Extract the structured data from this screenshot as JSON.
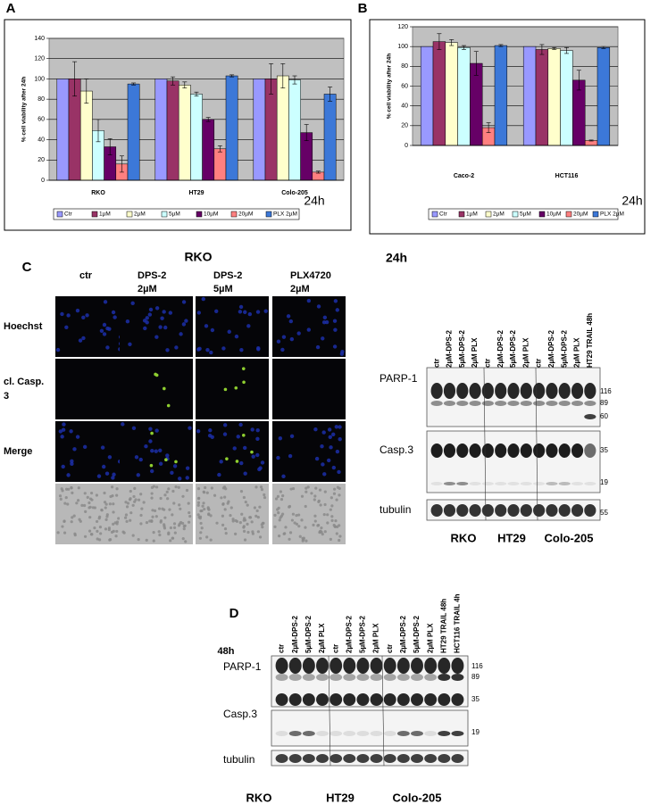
{
  "chart_data": [
    {
      "type": "bar",
      "panel_label": "A",
      "ylabel": "% cell viability after 24h",
      "annotation": "24h",
      "categories": [
        "RKO",
        "HT29",
        "Colo-205"
      ],
      "series": [
        {
          "name": "Ctr",
          "color": "#9999ff",
          "values": [
            100,
            100,
            100
          ],
          "errors": [
            null,
            null,
            null
          ]
        },
        {
          "name": "1µM",
          "color": "#993366",
          "values": [
            100,
            98,
            100
          ],
          "errors": [
            17,
            4,
            15
          ]
        },
        {
          "name": "2µM",
          "color": "#ffffcc",
          "values": [
            88,
            94,
            103
          ],
          "errors": [
            12,
            3,
            12
          ]
        },
        {
          "name": "5µM",
          "color": "#ccffff",
          "values": [
            49,
            85,
            99
          ],
          "errors": [
            11,
            2,
            4
          ]
        },
        {
          "name": "10µM",
          "color": "#660066",
          "values": [
            33,
            60,
            47
          ],
          "errors": [
            8,
            2,
            8
          ]
        },
        {
          "name": "20µM",
          "color": "#ff8080",
          "values": [
            16,
            31,
            8
          ],
          "errors": [
            8,
            3,
            1
          ]
        },
        {
          "name": "PLX 2µM",
          "color": "#3c78d8",
          "values": [
            95,
            103,
            85
          ],
          "errors": [
            1,
            1,
            7
          ]
        }
      ],
      "ylim": [
        0,
        140
      ],
      "yticks": [
        0,
        20,
        40,
        60,
        80,
        100,
        120,
        140
      ],
      "grid": true
    },
    {
      "type": "bar",
      "panel_label": "B",
      "ylabel": "% cell viability after 24h",
      "annotation": "24h",
      "categories": [
        "Caco-2",
        "HCT116"
      ],
      "series": [
        {
          "name": "Ctr",
          "color": "#9999ff",
          "values": [
            100,
            100
          ],
          "errors": [
            null,
            null
          ]
        },
        {
          "name": "1µM",
          "color": "#993366",
          "values": [
            105,
            97
          ],
          "errors": [
            8,
            5
          ]
        },
        {
          "name": "2µM",
          "color": "#ffffcc",
          "values": [
            104,
            98
          ],
          "errors": [
            3,
            1
          ]
        },
        {
          "name": "5µM",
          "color": "#ccffff",
          "values": [
            99,
            96
          ],
          "errors": [
            2,
            3
          ]
        },
        {
          "name": "10µM",
          "color": "#660066",
          "values": [
            83,
            66
          ],
          "errors": [
            12,
            10
          ]
        },
        {
          "name": "20µM",
          "color": "#ff8080",
          "values": [
            18,
            5
          ],
          "errors": [
            5,
            0.5
          ]
        },
        {
          "name": "PLX 2µM",
          "color": "#3c78d8",
          "values": [
            101,
            99
          ],
          "errors": [
            1,
            1
          ]
        }
      ],
      "ylim": [
        0,
        120
      ],
      "yticks": [
        0,
        20,
        40,
        60,
        80,
        100,
        120
      ],
      "grid": true
    }
  ],
  "panel_c": {
    "label": "C",
    "title": "RKO",
    "columns": [
      [
        "ctr"
      ],
      [
        "DPS-2",
        "2µM"
      ],
      [
        "DPS-2",
        "5µM"
      ],
      [
        "PLX4720",
        "2µM"
      ]
    ],
    "rows": [
      [
        "Hoechst"
      ],
      [
        "cl. Casp.",
        "3"
      ],
      [
        "Merge"
      ]
    ]
  },
  "blot_24h": {
    "title": "24h",
    "lanes": [
      "ctr",
      "2µM-DPS-2",
      "5µM-DPS-2",
      "2µM PLX",
      "ctr",
      "2µM-DPS-2",
      "5µM-DPS-2",
      "2µM PLX",
      "ctr",
      "2µM-DPS-2",
      "5µM-DPS-2",
      "2µM PLX",
      "HT29 TRAIL 48h"
    ],
    "rows": [
      "PARP-1",
      "Casp.3",
      "tubulin"
    ],
    "markers": [
      "116",
      "89",
      "60",
      "35",
      "19",
      "55"
    ],
    "groups": [
      "RKO",
      "HT29",
      "Colo-205"
    ]
  },
  "blot_48h": {
    "label": "D",
    "title": "48h",
    "lanes": [
      "ctr",
      "2µM-DPS-2",
      "5µM-DPS-2",
      "2µM PLX",
      "ctr",
      "2µM-DPS-2",
      "5µM-DPS-2",
      "2µM PLX",
      "ctr",
      "2µM-DPS-2",
      "5µM-DPS-2",
      "2µM PLX",
      "HT29 TRAIL 48h",
      "HCT116 TRAIL 4h"
    ],
    "rows": [
      "PARP-1",
      "Casp.3",
      "tubulin"
    ],
    "markers": [
      "116",
      "89",
      "35",
      "19"
    ],
    "groups": [
      "RKO",
      "HT29",
      "Colo-205"
    ]
  }
}
